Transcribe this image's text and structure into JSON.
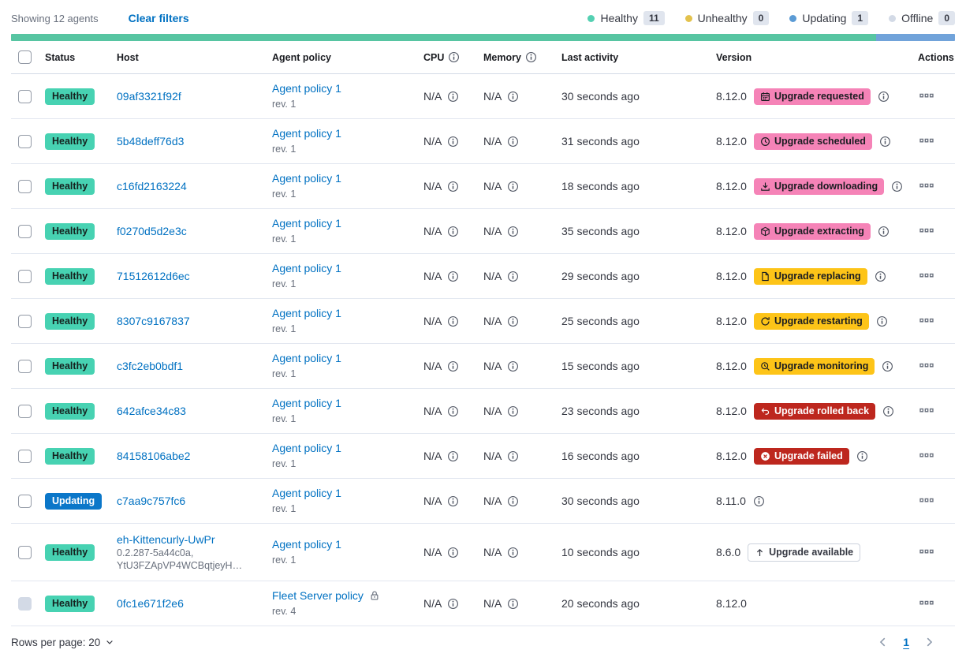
{
  "toolbar": {
    "showing_label": "Showing 12 agents",
    "clear_filters_label": "Clear filters"
  },
  "legend": {
    "items": [
      {
        "label": "Healthy",
        "count": "11",
        "color": "#54d0b2"
      },
      {
        "label": "Unhealthy",
        "count": "0",
        "color": "#e3c24d"
      },
      {
        "label": "Updating",
        "count": "1",
        "color": "#5b9bd5"
      },
      {
        "label": "Offline",
        "count": "0",
        "color": "#d3dae6"
      }
    ]
  },
  "health_bar": {
    "segments": [
      {
        "status": "healthy",
        "color": "#57c5a2",
        "fraction": 0.9167
      },
      {
        "status": "updating",
        "color": "#71a3da",
        "fraction": 0.0833
      }
    ]
  },
  "table": {
    "columns": [
      {
        "label": "Status"
      },
      {
        "label": "Host"
      },
      {
        "label": "Agent policy"
      },
      {
        "label": "CPU",
        "info_icon": true
      },
      {
        "label": "Memory",
        "info_icon": true
      },
      {
        "label": "Last activity"
      },
      {
        "label": "Version"
      },
      {
        "label": "Actions"
      }
    ],
    "rows": [
      {
        "status": {
          "label": "Healthy",
          "variant": "healthy"
        },
        "host": {
          "name": "09af3321f92f",
          "sublines": []
        },
        "policy": {
          "name": "Agent policy 1",
          "revision": "rev. 1",
          "locked": false
        },
        "cpu": "N/A",
        "memory": "N/A",
        "last_activity": "30 seconds ago",
        "version": "8.12.0",
        "upgrade_badge": {
          "label": "Upgrade requested",
          "variant": "pink",
          "icon": "calendar-icon"
        },
        "version_info_icon": true,
        "checkbox_disabled": false
      },
      {
        "status": {
          "label": "Healthy",
          "variant": "healthy"
        },
        "host": {
          "name": "5b48deff76d3",
          "sublines": []
        },
        "policy": {
          "name": "Agent policy 1",
          "revision": "rev. 1",
          "locked": false
        },
        "cpu": "N/A",
        "memory": "N/A",
        "last_activity": "31 seconds ago",
        "version": "8.12.0",
        "upgrade_badge": {
          "label": "Upgrade scheduled",
          "variant": "pink",
          "icon": "clock-icon"
        },
        "version_info_icon": true,
        "checkbox_disabled": false
      },
      {
        "status": {
          "label": "Healthy",
          "variant": "healthy"
        },
        "host": {
          "name": "c16fd2163224",
          "sublines": []
        },
        "policy": {
          "name": "Agent policy 1",
          "revision": "rev. 1",
          "locked": false
        },
        "cpu": "N/A",
        "memory": "N/A",
        "last_activity": "18 seconds ago",
        "version": "8.12.0",
        "upgrade_badge": {
          "label": "Upgrade downloading",
          "variant": "pink",
          "icon": "download-icon"
        },
        "version_info_icon": true,
        "checkbox_disabled": false
      },
      {
        "status": {
          "label": "Healthy",
          "variant": "healthy"
        },
        "host": {
          "name": "f0270d5d2e3c",
          "sublines": []
        },
        "policy": {
          "name": "Agent policy 1",
          "revision": "rev. 1",
          "locked": false
        },
        "cpu": "N/A",
        "memory": "N/A",
        "last_activity": "35 seconds ago",
        "version": "8.12.0",
        "upgrade_badge": {
          "label": "Upgrade extracting",
          "variant": "pink",
          "icon": "package-icon"
        },
        "version_info_icon": true,
        "checkbox_disabled": false
      },
      {
        "status": {
          "label": "Healthy",
          "variant": "healthy"
        },
        "host": {
          "name": "71512612d6ec",
          "sublines": []
        },
        "policy": {
          "name": "Agent policy 1",
          "revision": "rev. 1",
          "locked": false
        },
        "cpu": "N/A",
        "memory": "N/A",
        "last_activity": "29 seconds ago",
        "version": "8.12.0",
        "upgrade_badge": {
          "label": "Upgrade replacing",
          "variant": "yellow",
          "icon": "document-icon"
        },
        "version_info_icon": true,
        "checkbox_disabled": false
      },
      {
        "status": {
          "label": "Healthy",
          "variant": "healthy"
        },
        "host": {
          "name": "8307c9167837",
          "sublines": []
        },
        "policy": {
          "name": "Agent policy 1",
          "revision": "rev. 1",
          "locked": false
        },
        "cpu": "N/A",
        "memory": "N/A",
        "last_activity": "25 seconds ago",
        "version": "8.12.0",
        "upgrade_badge": {
          "label": "Upgrade restarting",
          "variant": "yellow",
          "icon": "refresh-icon"
        },
        "version_info_icon": true,
        "checkbox_disabled": false
      },
      {
        "status": {
          "label": "Healthy",
          "variant": "healthy"
        },
        "host": {
          "name": "c3fc2eb0bdf1",
          "sublines": []
        },
        "policy": {
          "name": "Agent policy 1",
          "revision": "rev. 1",
          "locked": false
        },
        "cpu": "N/A",
        "memory": "N/A",
        "last_activity": "15 seconds ago",
        "version": "8.12.0",
        "upgrade_badge": {
          "label": "Upgrade monitoring",
          "variant": "yellow",
          "icon": "inspect-icon"
        },
        "version_info_icon": true,
        "checkbox_disabled": false
      },
      {
        "status": {
          "label": "Healthy",
          "variant": "healthy"
        },
        "host": {
          "name": "642afce34c83",
          "sublines": []
        },
        "policy": {
          "name": "Agent policy 1",
          "revision": "rev. 1",
          "locked": false
        },
        "cpu": "N/A",
        "memory": "N/A",
        "last_activity": "23 seconds ago",
        "version": "8.12.0",
        "upgrade_badge": {
          "label": "Upgrade rolled back",
          "variant": "red",
          "icon": "return-icon"
        },
        "version_info_icon": true,
        "checkbox_disabled": false
      },
      {
        "status": {
          "label": "Healthy",
          "variant": "healthy"
        },
        "host": {
          "name": "84158106abe2",
          "sublines": []
        },
        "policy": {
          "name": "Agent policy 1",
          "revision": "rev. 1",
          "locked": false
        },
        "cpu": "N/A",
        "memory": "N/A",
        "last_activity": "16 seconds ago",
        "version": "8.12.0",
        "upgrade_badge": {
          "label": "Upgrade failed",
          "variant": "red",
          "icon": "error-icon"
        },
        "version_info_icon": true,
        "checkbox_disabled": false
      },
      {
        "status": {
          "label": "Updating",
          "variant": "updating"
        },
        "host": {
          "name": "c7aa9c757fc6",
          "sublines": []
        },
        "policy": {
          "name": "Agent policy 1",
          "revision": "rev. 1",
          "locked": false
        },
        "cpu": "N/A",
        "memory": "N/A",
        "last_activity": "30 seconds ago",
        "version": "8.11.0",
        "upgrade_badge": null,
        "version_info_icon": true,
        "checkbox_disabled": false
      },
      {
        "status": {
          "label": "Healthy",
          "variant": "healthy"
        },
        "host": {
          "name": "eh-Kittencurly-UwPr",
          "sublines": [
            "0.2.287-5a44c0a,",
            "YtU3FZApVP4WCBqtjeyH…"
          ]
        },
        "policy": {
          "name": "Agent policy 1",
          "revision": "rev. 1",
          "locked": false
        },
        "cpu": "N/A",
        "memory": "N/A",
        "last_activity": "10 seconds ago",
        "version": "8.6.0",
        "upgrade_badge": {
          "label": "Upgrade available",
          "variant": "outline",
          "icon": "sortup-icon"
        },
        "version_info_icon": false,
        "checkbox_disabled": false
      },
      {
        "status": {
          "label": "Healthy",
          "variant": "healthy"
        },
        "host": {
          "name": "0fc1e671f2e6",
          "sublines": []
        },
        "policy": {
          "name": "Fleet Server policy",
          "revision": "rev. 4",
          "locked": true
        },
        "cpu": "N/A",
        "memory": "N/A",
        "last_activity": "20 seconds ago",
        "version": "8.12.0",
        "upgrade_badge": null,
        "version_info_icon": false,
        "checkbox_disabled": true
      }
    ]
  },
  "footer": {
    "rows_per_page_label": "Rows per page: 20",
    "page": "1"
  },
  "colors": {
    "link": "#0071c2",
    "status_healthy_bg": "#47d2b2",
    "status_updating_bg": "#0b77c9",
    "badge_pink": "#f583b7",
    "badge_yellow": "#fdc418",
    "badge_red": "#bd271e"
  }
}
